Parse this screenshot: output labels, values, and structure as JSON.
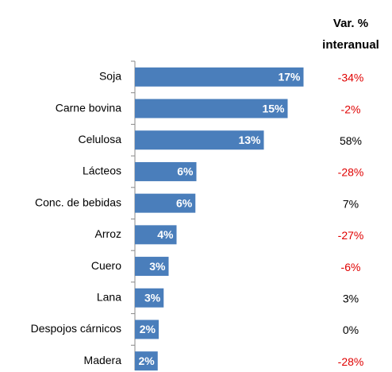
{
  "chart_data": {
    "type": "bar",
    "orientation": "horizontal",
    "categories": [
      "Soja",
      "Carne bovina",
      "Celulosa",
      "Lácteos",
      "Conc. de bebidas",
      "Arroz",
      "Cuero",
      "Lana",
      "Despojos cárnicos",
      "Madera"
    ],
    "values": [
      17.0,
      15.4,
      13.0,
      6.2,
      6.1,
      4.2,
      3.4,
      2.9,
      2.4,
      2.3
    ],
    "value_labels": [
      "17%",
      "15%",
      "13%",
      "6%",
      "6%",
      "4%",
      "3%",
      "3%",
      "2%",
      "2%"
    ],
    "color": "#4a7ebb",
    "change": {
      "title": [
        "Var. %",
        "interanual"
      ],
      "values": [
        -34,
        -2,
        58,
        -28,
        7,
        -27,
        -6,
        3,
        0,
        -28
      ],
      "value_labels": [
        "-34%",
        "-2%",
        "58%",
        "-28%",
        "7%",
        "-27%",
        "-6%",
        "3%",
        "0%",
        "-28%"
      ],
      "color": "#000000",
      "negative_color": "#e00000"
    }
  }
}
